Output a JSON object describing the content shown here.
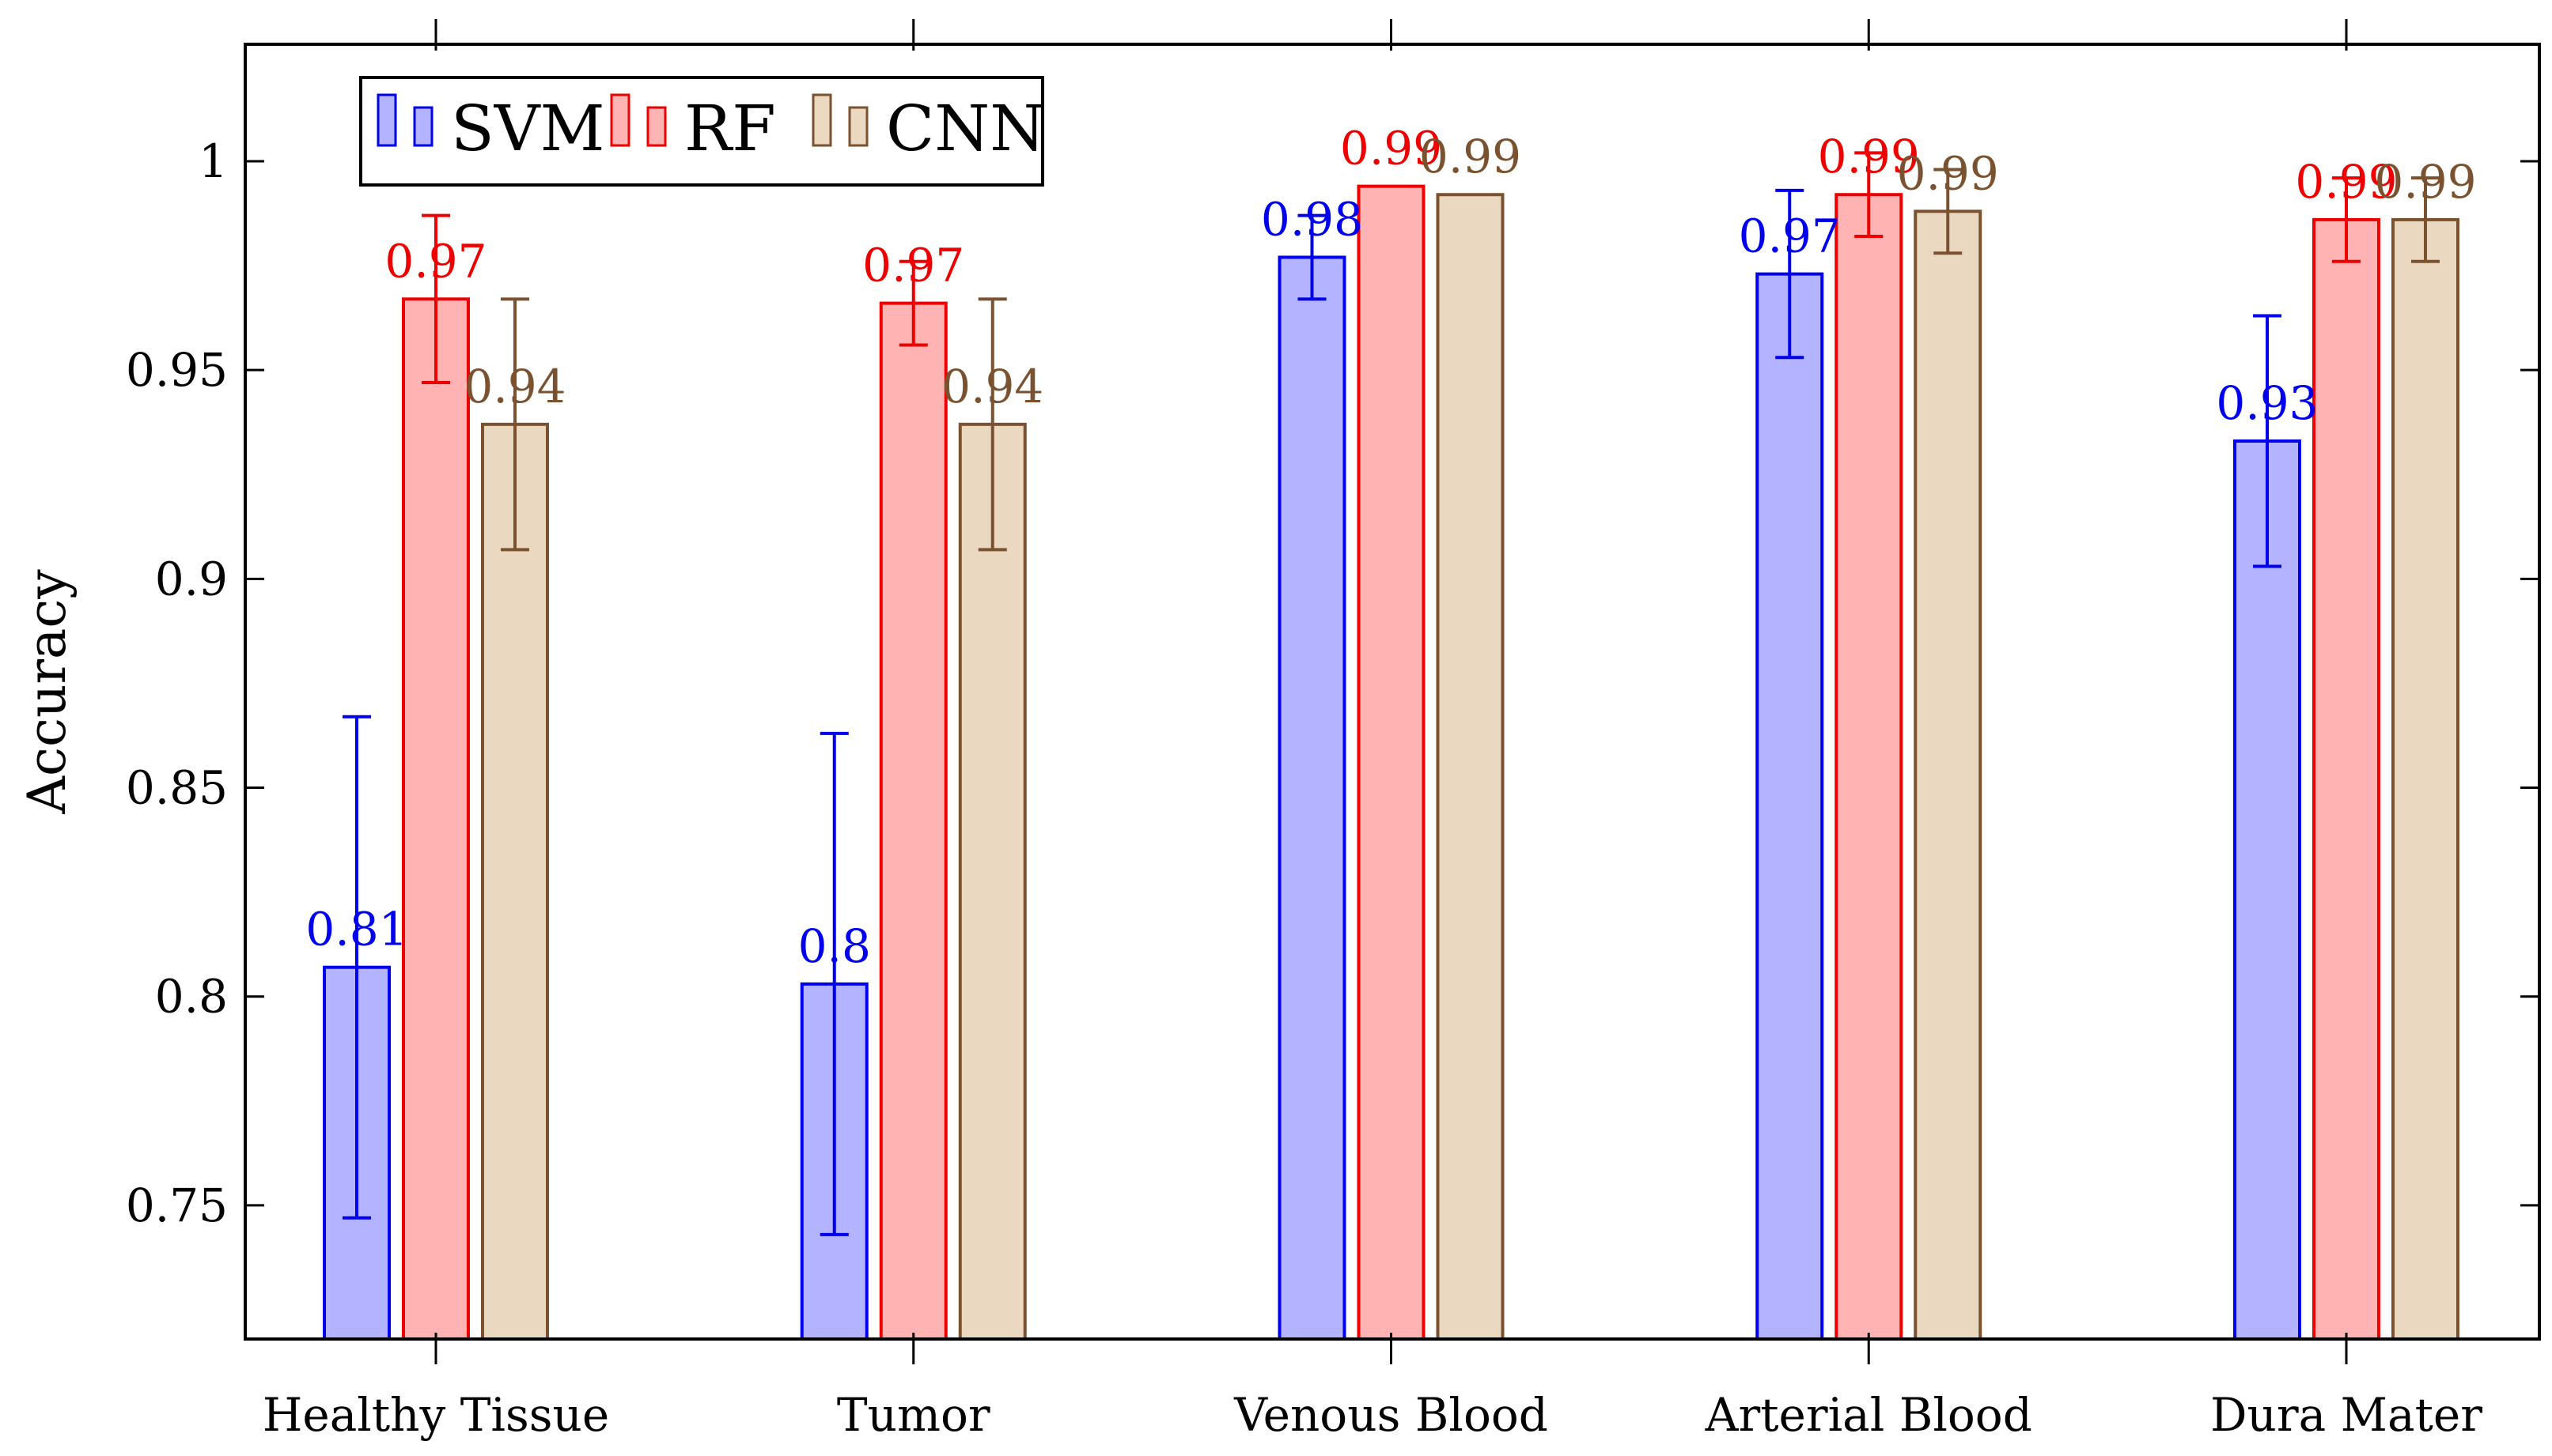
{
  "chart_data": {
    "type": "bar",
    "title": "",
    "xlabel": "",
    "ylabel": "Accuracy",
    "ylim": [
      0.718,
      1.028
    ],
    "yticks": [
      0.75,
      0.8,
      0.85,
      0.9,
      0.95,
      1
    ],
    "ytick_labels": [
      "0.75",
      "0.8",
      "0.85",
      "0.9",
      "0.95",
      "1"
    ],
    "categories": [
      "Healthy Tissue",
      "Tumor",
      "Venous Blood",
      "Arterial Blood",
      "Dura Mater"
    ],
    "legend_position": "top-left",
    "series": [
      {
        "name": "SVM",
        "fill": "#b3b3ff",
        "stroke": "#0000ee",
        "label_color": "#0000ee",
        "values": [
          0.807,
          0.803,
          0.977,
          0.973,
          0.933
        ],
        "errors": [
          0.06,
          0.06,
          0.01,
          0.02,
          0.03
        ],
        "labels": [
          "0.81",
          "0.8",
          "0.98",
          "0.97",
          "0.93"
        ]
      },
      {
        "name": "RF",
        "fill": "#ffb3b3",
        "stroke": "#ee0000",
        "label_color": "#ee0000",
        "values": [
          0.967,
          0.966,
          0.994,
          0.992,
          0.986
        ],
        "errors": [
          0.02,
          0.01,
          0.0,
          0.01,
          0.01
        ],
        "labels": [
          "0.97",
          "0.97",
          "0.99",
          "0.99",
          "0.99"
        ]
      },
      {
        "name": "CNN",
        "fill": "#ebd8c1",
        "stroke": "#7a5230",
        "label_color": "#7a5230",
        "values": [
          0.937,
          0.937,
          0.992,
          0.988,
          0.986
        ],
        "errors": [
          0.03,
          0.03,
          0.0,
          0.01,
          0.01
        ],
        "labels": [
          "0.94",
          "0.94",
          "0.99",
          "0.99",
          "0.99"
        ]
      }
    ]
  }
}
